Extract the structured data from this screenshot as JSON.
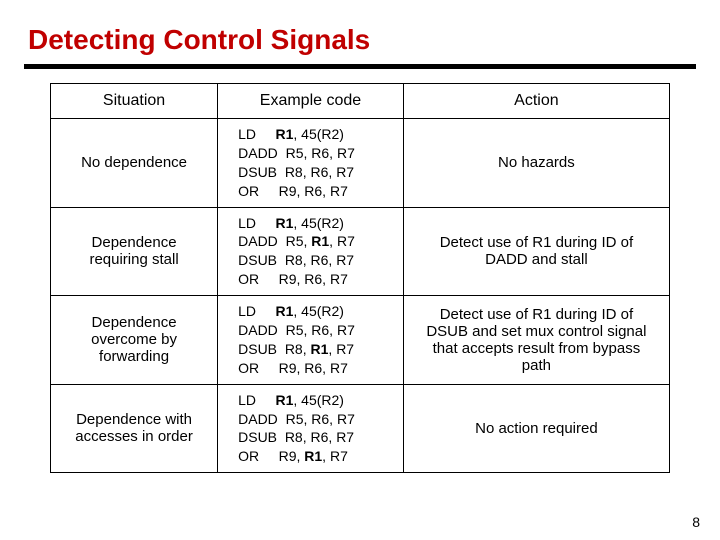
{
  "title": "Detecting Control Signals",
  "title_color": "#c00000",
  "rule_color": "#000000",
  "pagenum": "8",
  "headers": {
    "situation": "Situation",
    "code": "Example code",
    "action": "Action"
  },
  "rows": [
    {
      "situation": "No dependence",
      "action": "No hazards",
      "code": [
        {
          "op": "LD",
          "a": "R1",
          "a_b": true,
          "b": "45(R2)",
          "b_b": false,
          "c": "",
          "c_b": false
        },
        {
          "op": "DADD",
          "a": "R5",
          "a_b": false,
          "b": "R6",
          "b_b": false,
          "c": "R7",
          "c_b": false
        },
        {
          "op": "DSUB",
          "a": "R8",
          "a_b": false,
          "b": "R6",
          "b_b": false,
          "c": "R7",
          "c_b": false
        },
        {
          "op": "OR",
          "a": "R9",
          "a_b": false,
          "b": "R6",
          "b_b": false,
          "c": "R7",
          "c_b": false
        }
      ]
    },
    {
      "situation": "Dependence\nrequiring stall",
      "action": "Detect use of R1 during ID of DADD and stall",
      "code": [
        {
          "op": "LD",
          "a": "R1",
          "a_b": true,
          "b": "45(R2)",
          "b_b": false,
          "c": "",
          "c_b": false
        },
        {
          "op": "DADD",
          "a": "R5",
          "a_b": false,
          "b": "R1",
          "b_b": true,
          "c": "R7",
          "c_b": false
        },
        {
          "op": "DSUB",
          "a": "R8",
          "a_b": false,
          "b": "R6",
          "b_b": false,
          "c": "R7",
          "c_b": false
        },
        {
          "op": "OR",
          "a": "R9",
          "a_b": false,
          "b": "R6",
          "b_b": false,
          "c": "R7",
          "c_b": false
        }
      ]
    },
    {
      "situation": "Dependence\novercome by\nforwarding",
      "action": "Detect use of R1 during ID of DSUB and set mux control signal that accepts result from bypass path",
      "code": [
        {
          "op": "LD",
          "a": "R1",
          "a_b": true,
          "b": "45(R2)",
          "b_b": false,
          "c": "",
          "c_b": false
        },
        {
          "op": "DADD",
          "a": "R5",
          "a_b": false,
          "b": "R6",
          "b_b": false,
          "c": "R7",
          "c_b": false
        },
        {
          "op": "DSUB",
          "a": "R8",
          "a_b": false,
          "b": "R1",
          "b_b": true,
          "c": "R7",
          "c_b": false
        },
        {
          "op": "OR",
          "a": "R9",
          "a_b": false,
          "b": "R6",
          "b_b": false,
          "c": "R7",
          "c_b": false
        }
      ]
    },
    {
      "situation": "Dependence with\naccesses in order",
      "action": "No action required",
      "code": [
        {
          "op": "LD",
          "a": "R1",
          "a_b": true,
          "b": "45(R2)",
          "b_b": false,
          "c": "",
          "c_b": false
        },
        {
          "op": "DADD",
          "a": "R5",
          "a_b": false,
          "b": "R6",
          "b_b": false,
          "c": "R7",
          "c_b": false
        },
        {
          "op": "DSUB",
          "a": "R8",
          "a_b": false,
          "b": "R6",
          "b_b": false,
          "c": "R7",
          "c_b": false
        },
        {
          "op": "OR",
          "a": "R9",
          "a_b": false,
          "b": "R1",
          "b_b": true,
          "c": "R7",
          "c_b": false
        }
      ]
    }
  ]
}
